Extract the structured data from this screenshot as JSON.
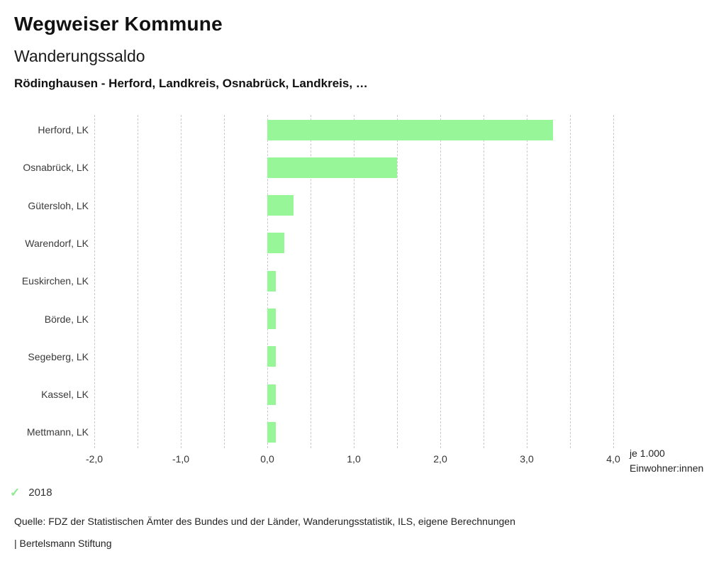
{
  "header": {
    "app_title": "Wegweiser Kommune",
    "chart_title": "Wanderungssaldo",
    "subtitle": "Rödinghausen - Herford, Landkreis, Osnabrück, Landkreis, …"
  },
  "chart_data": {
    "type": "bar",
    "orientation": "horizontal",
    "title": "Wanderungssaldo",
    "categories": [
      "Herford, LK",
      "Osnabrück, LK",
      "Gütersloh, LK",
      "Warendorf, LK",
      "Euskirchen, LK",
      "Börde, LK",
      "Segeberg, LK",
      "Kassel, LK",
      "Mettmann, LK"
    ],
    "series": [
      {
        "name": "2018",
        "values": [
          3.3,
          1.5,
          0.3,
          0.2,
          0.1,
          0.1,
          0.1,
          0.1,
          0.1
        ]
      }
    ],
    "xlim": [
      -2.0,
      4.0
    ],
    "x_ticks": [
      -2,
      -1,
      0,
      1,
      2,
      3,
      4
    ],
    "x_tick_labels": [
      "-2,0",
      "-1,0",
      "0,0",
      "1,0",
      "2,0",
      "3,0",
      "4,0"
    ],
    "gridline_step": 0.5,
    "grid": true,
    "unit_line1": "je 1.000",
    "unit_line2": "Einwohner:innen",
    "bar_color": "#97f697",
    "legend_position": "bottom-left"
  },
  "legend": {
    "check_icon": "✓",
    "year": "2018",
    "check_color": "#8fe98f"
  },
  "footer": {
    "source": "Quelle: FDZ der Statistischen Ämter des Bundes und der Länder, Wanderungsstatistik, ILS, eigene Berechnungen",
    "attribution": "| Bertelsmann Stiftung"
  }
}
